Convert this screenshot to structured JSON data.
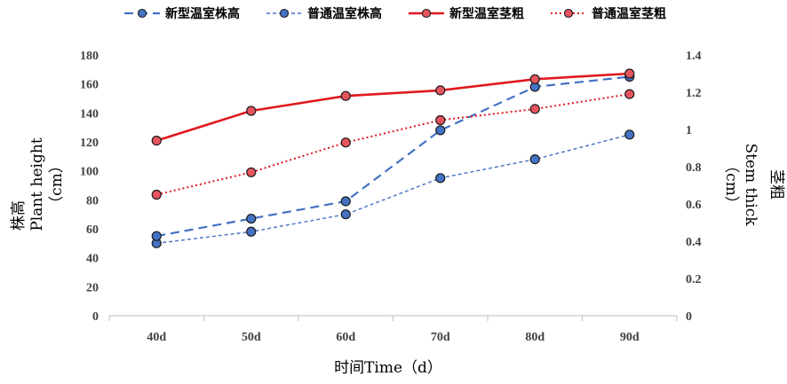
{
  "chart_data": {
    "type": "line",
    "categories": [
      "40d",
      "50d",
      "60d",
      "70d",
      "80d",
      "90d"
    ],
    "xlabel": "时间Time（d）",
    "ylabel_left": {
      "line1": "株高",
      "line2": "Plant height",
      "line3": "（cm）"
    },
    "ylabel_right": {
      "line1": "茎粗",
      "line2": "Stem thick",
      "line3": "（cm）"
    },
    "y_left": {
      "min": 0,
      "max": 180,
      "step": 20,
      "ticks": [
        "0",
        "20",
        "40",
        "60",
        "80",
        "100",
        "120",
        "140",
        "160",
        "180"
      ]
    },
    "y_right": {
      "min": 0,
      "max": 1.4,
      "step": 0.2,
      "ticks": [
        "0",
        "0.2",
        "0.4",
        "0.6",
        "0.8",
        "1",
        "1.2",
        "1.4"
      ]
    },
    "grid": false,
    "legend_position": "top",
    "series": [
      {
        "name": "新型温室株高",
        "axis": "left",
        "color": "#4472c4",
        "dash": "long",
        "width": 2.2,
        "values": [
          55,
          67,
          79,
          128,
          158,
          165
        ]
      },
      {
        "name": "普通温室株高",
        "axis": "left",
        "color": "#4472c4",
        "dash": "short",
        "width": 1.4,
        "values": [
          50,
          58,
          70,
          95,
          108,
          125
        ]
      },
      {
        "name": "新型温室茎粗",
        "axis": "right",
        "color": "#e0191e",
        "dash": "solid",
        "width": 2.6,
        "values": [
          0.94,
          1.1,
          1.18,
          1.21,
          1.27,
          1.3
        ]
      },
      {
        "name": "普通温室茎粗",
        "axis": "right",
        "color": "#e0191e",
        "dash": "dot",
        "width": 2.0,
        "values": [
          0.65,
          0.77,
          0.93,
          1.05,
          1.11,
          1.19
        ]
      }
    ],
    "marker_fill": {
      "blue": "#4472c4",
      "red": "#e8545e"
    }
  }
}
